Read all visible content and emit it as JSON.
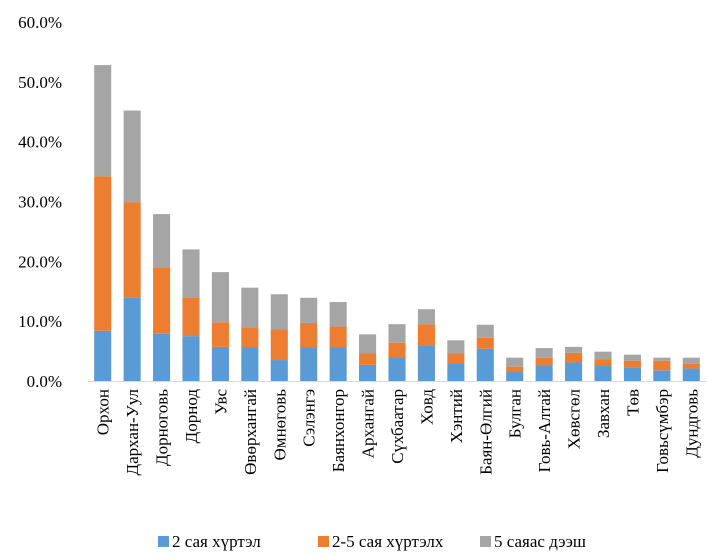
{
  "chart_data": {
    "type": "bar",
    "stacked": true,
    "title": "",
    "xlabel": "",
    "ylabel": "",
    "ylim": [
      0,
      60
    ],
    "y_ticks": [
      "0.0%",
      "10.0%",
      "20.0%",
      "30.0%",
      "40.0%",
      "50.0%",
      "60.0%"
    ],
    "grid": false,
    "legend_position": "bottom",
    "categories": [
      "Орхон",
      "Дархан-Уул",
      "Дорноговь",
      "Дорнод",
      "Увс",
      "Өвөрхангай",
      "Өмнөговь",
      "Сэлэнгэ",
      "Баянхонгор",
      "Архангай",
      "Сүхбаатар",
      "Ховд",
      "Хэнтий",
      "Баян-Өлгий",
      "Булган",
      "Говь-Алтай",
      "Хөвсгөл",
      "Завхан",
      "Төв",
      "Говьсүмбэр",
      "Дундговь"
    ],
    "series": [
      {
        "name": "2 сая хүртэл",
        "color": "#5b9bd5",
        "values": [
          8.4,
          14.0,
          7.9,
          7.5,
          5.7,
          5.6,
          3.5,
          5.6,
          5.6,
          2.7,
          4.0,
          6.0,
          3.0,
          5.4,
          1.5,
          2.6,
          3.1,
          2.5,
          2.3,
          1.8,
          2.1
        ]
      },
      {
        "name": "2-5 сая хүртэлх",
        "color": "#ed7d31",
        "values": [
          25.8,
          15.9,
          11.1,
          6.5,
          4.1,
          3.4,
          5.1,
          4.1,
          3.5,
          1.9,
          2.4,
          3.5,
          1.6,
          1.8,
          0.9,
          1.3,
          1.6,
          1.1,
          1.1,
          1.6,
          0.8
        ]
      },
      {
        "name": "5 саяас дээш",
        "color": "#a5a5a5",
        "values": [
          18.6,
          15.3,
          8.9,
          8.0,
          8.4,
          6.6,
          5.9,
          4.2,
          4.1,
          3.2,
          3.1,
          2.5,
          2.2,
          2.2,
          1.5,
          1.6,
          1.0,
          1.3,
          1.0,
          0.5,
          1.0
        ]
      }
    ]
  }
}
